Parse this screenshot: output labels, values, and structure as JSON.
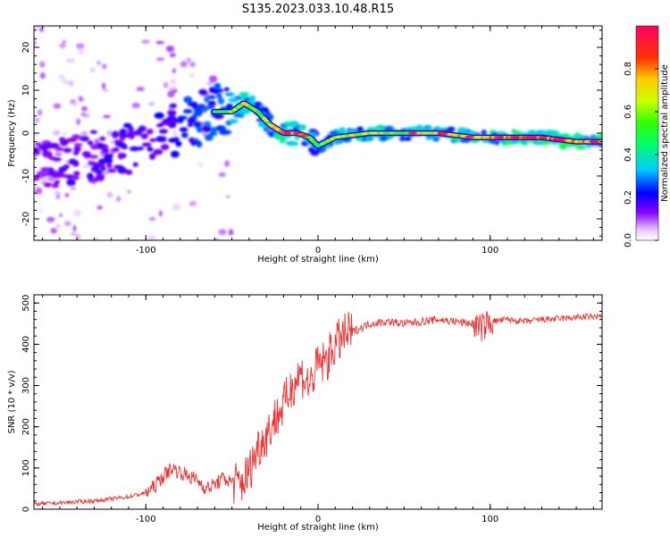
{
  "title": "S135.2023.033.10.48.R15",
  "chart_data": [
    {
      "type": "heatmap",
      "xlabel": "Height of straight line (km)",
      "ylabel": "Frequency (Hz)",
      "xlim": [
        -165,
        165
      ],
      "ylim": [
        -25,
        25
      ],
      "xticks": [
        -100,
        0,
        100
      ],
      "yticks": [
        -20,
        -10,
        0,
        10,
        20
      ],
      "colorbar": {
        "label": "Normalized spectral amplitude",
        "range": [
          0,
          1
        ],
        "ticks": [
          0.0,
          0.2,
          0.4,
          0.6,
          0.8
        ]
      },
      "ridge": {
        "x": [
          -165,
          -140,
          -120,
          -100,
          -90,
          -80,
          -70,
          -60,
          -50,
          -43,
          -35,
          -28,
          -20,
          -12,
          -5,
          0,
          10,
          30,
          50,
          70,
          90,
          110,
          130,
          150,
          165
        ],
        "y": [
          -8,
          -6,
          -5,
          -3,
          -1,
          2,
          3,
          5,
          5,
          7,
          5,
          2,
          0,
          0,
          -1,
          -3,
          -1,
          0,
          0,
          0,
          -1,
          -1,
          -1,
          -2,
          -2
        ],
        "amplitude": [
          0.2,
          0.25,
          0.3,
          0.3,
          0.35,
          0.4,
          0.45,
          0.5,
          0.6,
          0.7,
          0.6,
          0.7,
          0.8,
          0.75,
          0.6,
          0.5,
          0.65,
          0.7,
          0.6,
          0.8,
          0.75,
          0.9,
          0.95,
          0.9,
          0.85
        ]
      },
      "grid": false
    },
    {
      "type": "line",
      "xlabel": "Height of straight line (km)",
      "ylabel": "SNR (10 * v/v)",
      "xlim": [
        -165,
        165
      ],
      "ylim": [
        0,
        520
      ],
      "xticks": [
        -100,
        0,
        100
      ],
      "yticks": [
        0,
        100,
        200,
        300,
        400,
        500
      ],
      "color": "#ee3333",
      "series": [
        {
          "x": [
            -165,
            -150,
            -140,
            -130,
            -120,
            -110,
            -100,
            -95,
            -90,
            -85,
            -80,
            -75,
            -70,
            -65,
            -60,
            -55,
            -50,
            -45,
            -40,
            -35,
            -30,
            -25,
            -20,
            -15,
            -10,
            -5,
            0,
            5,
            10,
            15,
            20,
            25,
            30,
            40,
            50,
            60,
            70,
            80,
            90,
            95,
            100,
            110,
            120,
            130,
            140,
            150,
            165
          ],
          "y": [
            12,
            15,
            18,
            20,
            25,
            30,
            40,
            55,
            80,
            100,
            90,
            80,
            70,
            50,
            60,
            75,
            65,
            60,
            90,
            150,
            180,
            220,
            250,
            300,
            330,
            300,
            350,
            360,
            400,
            420,
            430,
            440,
            450,
            455,
            450,
            455,
            460,
            455,
            450,
            440,
            455,
            460,
            455,
            460,
            462,
            465,
            468
          ]
        }
      ],
      "grid": false
    }
  ]
}
